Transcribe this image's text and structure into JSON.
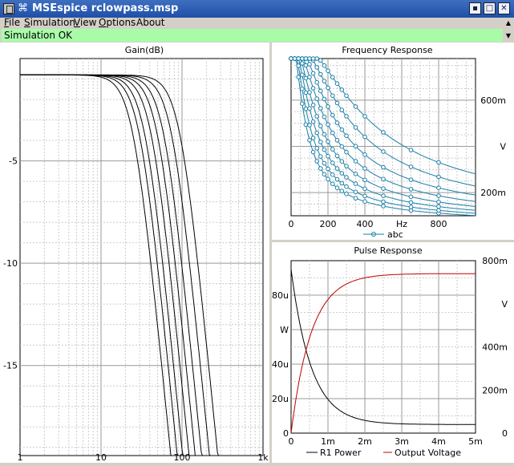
{
  "window": {
    "title": "MSEspice rclowpass.msp",
    "pin_glyph": "⌘",
    "menu_glyph": "▣",
    "min_glyph": "▪",
    "max_glyph": "□",
    "close_glyph": "✕"
  },
  "menu": [
    {
      "label": "File",
      "u": "F",
      "rest": "ile"
    },
    {
      "label": "Simulation",
      "u": "S",
      "rest": "imulation"
    },
    {
      "label": "View",
      "u": "V",
      "rest": "iew"
    },
    {
      "label": "Options",
      "u": "O",
      "rest": "ptions"
    },
    {
      "label": "About",
      "u": "",
      "rest": "About"
    }
  ],
  "status": {
    "text": "Simulation OK",
    "color": "#a8fca8"
  },
  "scroll": {
    "up": "▲",
    "down": "▼"
  },
  "chart_data": [
    {
      "type": "line",
      "title": "Gain(dB)",
      "x_scale": "log",
      "xlim": [
        1,
        1000
      ],
      "ylim": [
        -19.4,
        0
      ],
      "x_tick_labels": [
        "1",
        "10",
        "100",
        "1k"
      ],
      "x_ticks": [
        1,
        10,
        100,
        1000
      ],
      "y_tick_labels": [
        "-5",
        "-10",
        "-15"
      ],
      "y_ticks": [
        -5,
        -10,
        -15
      ],
      "grid": true,
      "series_color": "#000000",
      "series": [
        {
          "fc": 25
        },
        {
          "fc": 30
        },
        {
          "fc": 35
        },
        {
          "fc": 42
        },
        {
          "fc": 50
        },
        {
          "fc": 60
        },
        {
          "fc": 75
        },
        {
          "fc": 95
        }
      ]
    },
    {
      "type": "line",
      "title": "Frequency Response",
      "xlim": [
        0,
        1000
      ],
      "ylim": [
        100,
        780
      ],
      "x_tick_labels": [
        "0",
        "200",
        "400",
        "Hz",
        "800"
      ],
      "x_ticks": [
        0,
        200,
        400,
        600,
        800
      ],
      "y_tick_labels": [
        "200m",
        "V",
        "600m"
      ],
      "y_ticks": [
        200,
        400,
        600
      ],
      "legend": "abc",
      "legend_position": "bottom",
      "grid": true,
      "series_color": "#1a7fa8",
      "series": [
        {
          "fc": 50
        },
        {
          "fc": 62
        },
        {
          "fc": 78
        },
        {
          "fc": 98
        },
        {
          "fc": 125
        },
        {
          "fc": 160
        },
        {
          "fc": 210
        },
        {
          "fc": 280
        }
      ],
      "marker_x": [
        0,
        20,
        40,
        60,
        80,
        100,
        120,
        140,
        160,
        180,
        200,
        225,
        250,
        275,
        300,
        350,
        400,
        500,
        650,
        800
      ]
    },
    {
      "type": "line",
      "title": "Pulse Response",
      "xlim": [
        0,
        5
      ],
      "x_tick_labels": [
        "0",
        "1m",
        "2m",
        "3m",
        "4m",
        "5m"
      ],
      "x_ticks": [
        0,
        1,
        2,
        3,
        4,
        5
      ],
      "left_ylim": [
        0,
        100
      ],
      "left_tick_labels": [
        "0",
        "20u",
        "40u",
        "W",
        "80u"
      ],
      "left_ticks": [
        0,
        20,
        40,
        60,
        80
      ],
      "right_ylim": [
        0,
        800
      ],
      "right_tick_labels": [
        "0",
        "200m",
        "400m",
        "V",
        "800m"
      ],
      "right_ticks": [
        0,
        200,
        400,
        600,
        800
      ],
      "legend_position": "bottom",
      "grid": true,
      "series": [
        {
          "name": "R1 Power",
          "color": "#000000",
          "axis": "left",
          "start": 95,
          "end": 5,
          "tau": 0.55
        },
        {
          "name": "Output Voltage",
          "color": "#c00000",
          "axis": "right",
          "start": 0,
          "end": 740,
          "tau": 0.55
        }
      ]
    }
  ]
}
